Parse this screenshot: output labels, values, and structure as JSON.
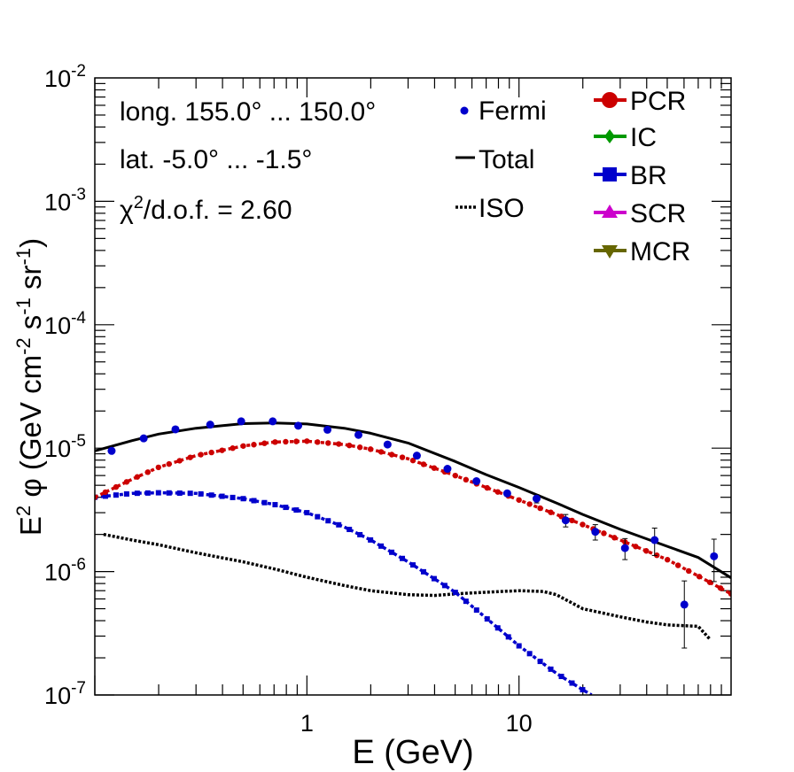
{
  "chart_data": {
    "type": "scatter",
    "title": "",
    "xlabel": "E (GeV)",
    "ylabel_parts": [
      "E",
      "2",
      " φ (GeV cm",
      "-2",
      " s",
      "-1",
      " sr",
      "-1",
      ")"
    ],
    "xscale": "log",
    "yscale": "log",
    "xlim": [
      0.1,
      100
    ],
    "ylim": [
      1e-07,
      0.01
    ],
    "x_tick_labels": [
      {
        "value": 1,
        "label": "1"
      },
      {
        "value": 10,
        "label": "10"
      }
    ],
    "y_tick_labels": [
      {
        "value": 1e-07,
        "base": "10",
        "exp": "-7"
      },
      {
        "value": 1e-06,
        "base": "10",
        "exp": "-6"
      },
      {
        "value": 1e-05,
        "base": "10",
        "exp": "-5"
      },
      {
        "value": 0.0001,
        "base": "10",
        "exp": "-4"
      },
      {
        "value": 0.001,
        "base": "10",
        "exp": "-3"
      },
      {
        "value": 0.01,
        "base": "10",
        "exp": "-2"
      }
    ],
    "annotations": {
      "longitude": "long. 155.0° ... 150.0°",
      "latitude": "lat. -5.0° ... -1.5°",
      "chi2_prefix": "χ",
      "chi2_sup": "2",
      "chi2_suffix": "/d.o.f. = 2.60"
    },
    "legend_left": [
      {
        "label": "Fermi",
        "style": "dot",
        "color": "#0000cc"
      },
      {
        "label": "Total",
        "style": "solid",
        "color": "#000000"
      },
      {
        "label": "ISO",
        "style": "dotted",
        "color": "#000000"
      }
    ],
    "legend_right": [
      {
        "label": "PCR",
        "marker": "circle",
        "color": "#cc0000"
      },
      {
        "label": "IC",
        "marker": "diamond",
        "color": "#009900"
      },
      {
        "label": "BR",
        "marker": "square",
        "color": "#0000cc"
      },
      {
        "label": "SCR",
        "marker": "triangle-up",
        "color": "#cc00cc"
      },
      {
        "label": "MCR",
        "marker": "triangle-down",
        "color": "#666600"
      }
    ],
    "series": [
      {
        "name": "Fermi",
        "type": "points",
        "color": "#0000cc",
        "x": [
          0.12,
          0.17,
          0.24,
          0.35,
          0.49,
          0.69,
          0.91,
          1.25,
          1.75,
          2.4,
          3.3,
          4.6,
          6.3,
          8.8,
          12.1,
          16.6,
          22.9,
          31.6,
          43.6,
          60.2,
          83.1
        ],
        "y": [
          9.5e-06,
          1.2e-05,
          1.42e-05,
          1.55e-05,
          1.65e-05,
          1.65e-05,
          1.52e-05,
          1.41e-05,
          1.28e-05,
          1.07e-05,
          8.7e-06,
          6.8e-06,
          5.4e-06,
          4.3e-06,
          3.9e-06,
          2.6e-06,
          2.1e-06,
          1.55e-06,
          1.8e-06,
          5.4e-07,
          1.33e-06
        ],
        "y_err": [
          0,
          0,
          0,
          0,
          0,
          0,
          0,
          0,
          0,
          0,
          0,
          0,
          0,
          0,
          3e-07,
          3e-07,
          3e-07,
          3e-07,
          4.5e-07,
          3e-07,
          5e-07
        ]
      },
      {
        "name": "Total",
        "type": "line",
        "style": "solid",
        "color": "#000000",
        "x": [
          0.1,
          0.15,
          0.2,
          0.3,
          0.5,
          0.7,
          1,
          1.5,
          2,
          3,
          5,
          7,
          10,
          15,
          20,
          30,
          50,
          70,
          100
        ],
        "y": [
          9.5e-06,
          1.15e-05,
          1.3e-05,
          1.45e-05,
          1.58e-05,
          1.6e-05,
          1.57e-05,
          1.45e-05,
          1.32e-05,
          1.1e-05,
          7.8e-06,
          6.1e-06,
          4.8e-06,
          3.6e-06,
          2.9e-06,
          2.2e-06,
          1.6e-06,
          1.3e-06,
          8.9e-07
        ]
      },
      {
        "name": "PCR",
        "type": "line",
        "style": "dotted-marker",
        "color": "#cc0000",
        "x": [
          0.1,
          0.15,
          0.2,
          0.3,
          0.5,
          0.7,
          1,
          1.5,
          2,
          3,
          5,
          7,
          10,
          15,
          20,
          30,
          50,
          70,
          100
        ],
        "y": [
          4e-06,
          5.6e-06,
          7e-06,
          8.7e-06,
          1.04e-05,
          1.12e-05,
          1.14e-05,
          1.07e-05,
          9.8e-06,
          8.2e-06,
          6e-06,
          4.8e-06,
          3.8e-06,
          2.9e-06,
          2.4e-06,
          1.8e-06,
          1.25e-06,
          9.2e-07,
          6.6e-07
        ]
      },
      {
        "name": "BR",
        "type": "line",
        "style": "dotted-marker",
        "color": "#0000cc",
        "x": [
          0.1,
          0.15,
          0.2,
          0.3,
          0.5,
          0.7,
          1,
          1.5,
          2,
          3,
          5,
          7,
          10,
          15,
          20,
          22
        ],
        "y": [
          4e-06,
          4.3e-06,
          4.35e-06,
          4.3e-06,
          3.9e-06,
          3.5e-06,
          3e-06,
          2.3e-06,
          1.8e-06,
          1.2e-06,
          6.8e-07,
          4.2e-07,
          2.5e-07,
          1.5e-07,
          1.1e-07,
          1e-07
        ]
      },
      {
        "name": "ISO",
        "type": "line",
        "style": "dotted",
        "color": "#000000",
        "x": [
          0.11,
          0.15,
          0.2,
          0.3,
          0.5,
          0.7,
          1,
          1.5,
          2,
          3,
          4,
          5,
          7,
          10,
          13,
          15,
          20,
          30,
          40,
          50,
          70,
          80
        ],
        "y": [
          2e-06,
          1.8e-06,
          1.65e-06,
          1.42e-06,
          1.2e-06,
          1.05e-06,
          9e-07,
          7.7e-07,
          7e-07,
          6.5e-07,
          6.4e-07,
          6.6e-07,
          6.8e-07,
          7e-07,
          6.9e-07,
          6.5e-07,
          5e-07,
          4.3e-07,
          3.9e-07,
          3.7e-07,
          3.6e-07,
          2.8e-07
        ]
      }
    ]
  }
}
